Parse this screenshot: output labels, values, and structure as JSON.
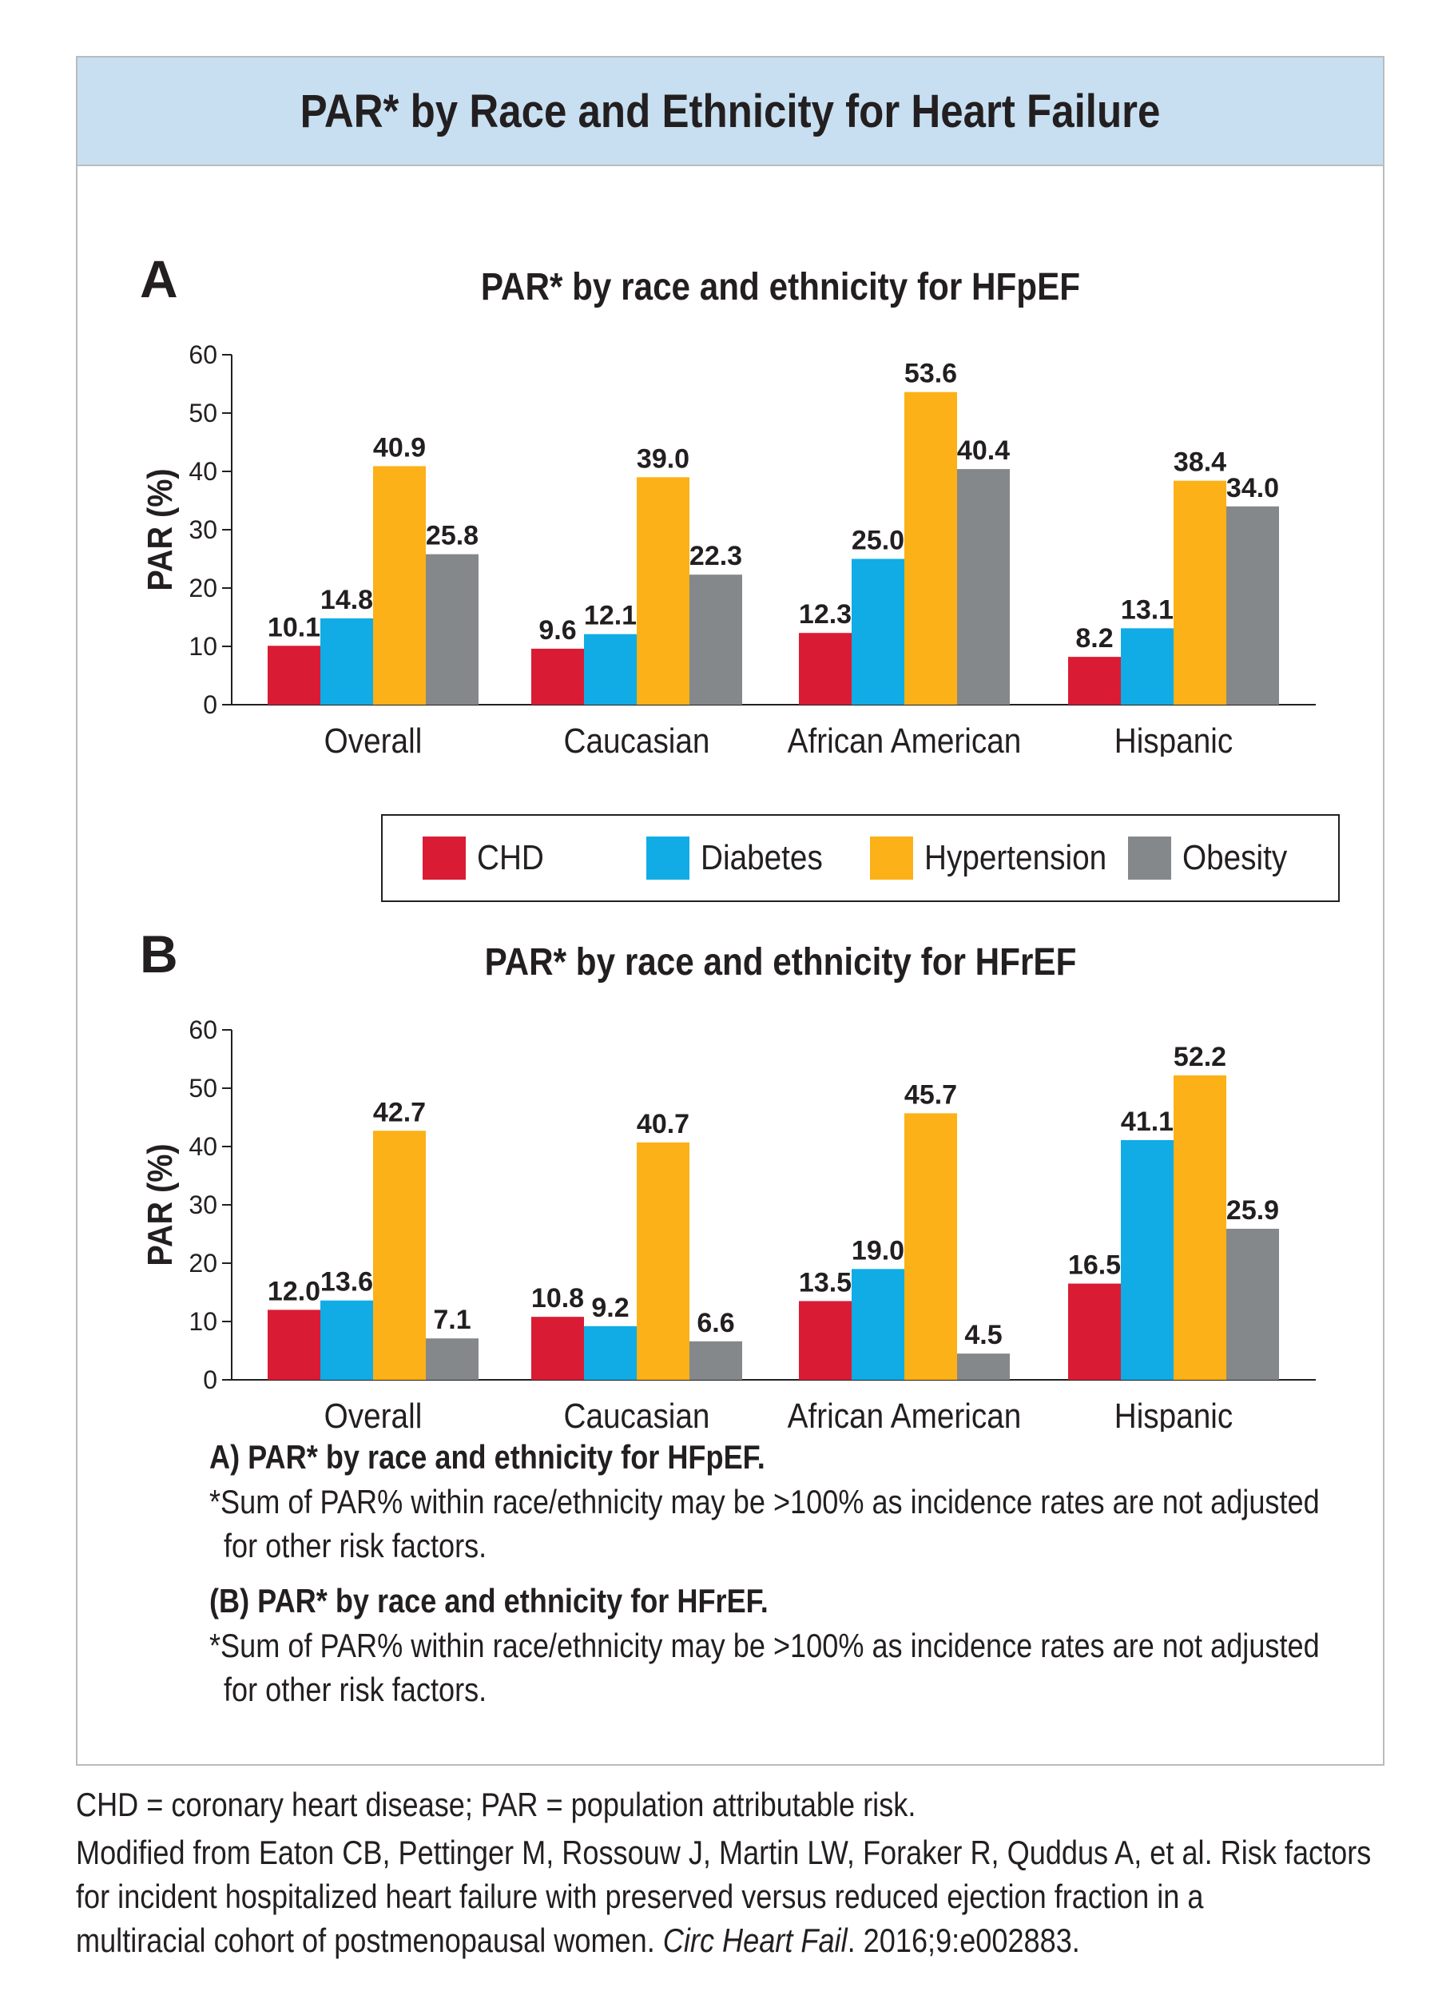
{
  "title": "PAR* by Race and Ethnicity for Heart Failure",
  "colors": {
    "CHD": "#d91c34",
    "Diabetes": "#11ace5",
    "Hypertension": "#fbb117",
    "Obesity": "#85888b",
    "header_band": "#c7dff1"
  },
  "legend": [
    {
      "label": "CHD",
      "color": "#d91c34"
    },
    {
      "label": "Diabetes",
      "color": "#11ace5"
    },
    {
      "label": "Hypertension",
      "color": "#fbb117"
    },
    {
      "label": "Obesity",
      "color": "#85888b"
    }
  ],
  "chart_data": [
    {
      "type": "bar",
      "panel_letter": "A",
      "title": "PAR* by race and ethnicity for HFpEF",
      "xlabel": "",
      "ylabel": "PAR (%)",
      "ylim": [
        0,
        60
      ],
      "yticks": [
        0,
        10,
        20,
        30,
        40,
        50,
        60
      ],
      "categories": [
        "Overall",
        "Caucasian",
        "African American",
        "Hispanic"
      ],
      "series": [
        {
          "name": "CHD",
          "values": [
            10.1,
            9.6,
            12.3,
            8.2
          ],
          "labels": [
            "10.1",
            "9.6",
            "12.3",
            "8.2"
          ]
        },
        {
          "name": "Diabetes",
          "values": [
            14.8,
            12.1,
            25.0,
            13.1
          ],
          "labels": [
            "14.8",
            "12.1",
            "25.0",
            "13.1"
          ]
        },
        {
          "name": "Hypertension",
          "values": [
            40.9,
            39.0,
            53.6,
            38.4
          ],
          "labels": [
            "40.9",
            "39.0",
            "53.6",
            "38.4"
          ]
        },
        {
          "name": "Obesity",
          "values": [
            25.8,
            22.3,
            40.4,
            34.0
          ],
          "labels": [
            "25.8",
            "22.3",
            "40.4",
            "34.0"
          ]
        }
      ]
    },
    {
      "type": "bar",
      "panel_letter": "B",
      "title": "PAR* by race and ethnicity for HFrEF",
      "xlabel": "",
      "ylabel": "PAR (%)",
      "ylim": [
        0,
        60
      ],
      "yticks": [
        0,
        10,
        20,
        30,
        40,
        50,
        60
      ],
      "categories": [
        "Overall",
        "Caucasian",
        "African American",
        "Hispanic"
      ],
      "series": [
        {
          "name": "CHD",
          "values": [
            12.0,
            10.8,
            13.5,
            16.5
          ],
          "labels": [
            "12.0",
            "10.8",
            "13.5",
            "16.5"
          ]
        },
        {
          "name": "Diabetes",
          "values": [
            13.6,
            9.2,
            19.0,
            41.1
          ],
          "labels": [
            "13.6",
            "9.2",
            "19.0",
            "41.1"
          ]
        },
        {
          "name": "Hypertension",
          "values": [
            42.7,
            40.7,
            45.7,
            52.2
          ],
          "labels": [
            "42.7",
            "40.7",
            "45.7",
            "52.2"
          ]
        },
        {
          "name": "Obesity",
          "values": [
            7.1,
            6.6,
            4.5,
            25.9
          ],
          "labels": [
            "7.1",
            "6.6",
            "4.5",
            "25.9"
          ]
        }
      ]
    }
  ],
  "captions": {
    "a_title": "A) PAR* by race and ethnicity for HFpEF.",
    "a_note_1": "*Sum of PAR% within race/ethnicity may be >100% as incidence rates are not adjusted",
    "a_note_2": "for other risk factors.",
    "b_title": "(B) PAR* by race and ethnicity for HFrEF.",
    "b_note_1": "*Sum of PAR% within race/ethnicity may be >100% as incidence rates are not adjusted",
    "b_note_2": "for other risk factors."
  },
  "footer": {
    "abbreviations": "CHD = coronary heart disease; PAR = population attributable risk.",
    "source_1": "Modified from Eaton CB, Pettinger M, Rossouw J, Martin LW, Foraker R, Quddus A, et al. Risk factors",
    "source_2": "for incident hospitalized heart failure with preserved versus reduced ejection fraction in a",
    "source_3_prefix": "multiracial cohort of postmenopausal women. ",
    "source_3_journal": "Circ Heart Fail",
    "source_3_suffix": ". 2016;9:e002883."
  }
}
